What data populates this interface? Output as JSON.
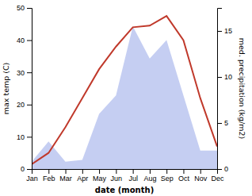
{
  "chart_data": {
    "type": "line",
    "xlabel": "date (month)",
    "ylabel": "max temp (C)",
    "y2label": "med. precipitation (kg/m2)",
    "categories": [
      "Jan",
      "Feb",
      "Mar",
      "Apr",
      "May",
      "Jun",
      "Jul",
      "Aug",
      "Sep",
      "Oct",
      "Nov",
      "Dec"
    ],
    "series": [
      {
        "type": "area",
        "axis": "y2",
        "color": "#bbc5f0",
        "values": [
          0.8,
          3.0,
          0.8,
          1.0,
          6.0,
          8.0,
          15.5,
          12.0,
          14.0,
          8.0,
          2.0,
          2.0
        ]
      },
      {
        "type": "line",
        "color": "#c0392b",
        "values": [
          1.5,
          5.0,
          13.0,
          22.0,
          31.0,
          38.0,
          44.0,
          44.5,
          47.5,
          40.0,
          22.0,
          7.0
        ]
      }
    ],
    "ylim": [
      0,
      50
    ],
    "yticks": [
      0,
      10,
      20,
      30,
      40,
      50
    ],
    "y2lim": [
      0,
      17.5
    ],
    "y2ticks": [
      0,
      5,
      10,
      15
    ],
    "grid": false
  }
}
